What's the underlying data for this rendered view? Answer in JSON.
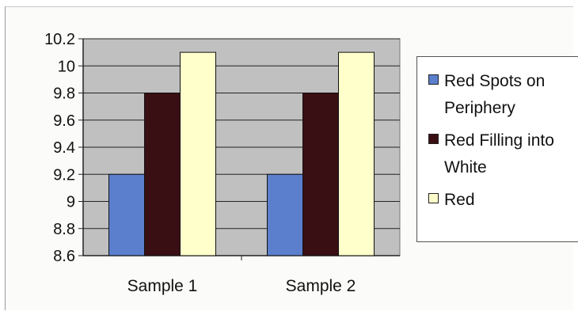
{
  "chart_data": {
    "type": "bar",
    "categories": [
      "Sample 1",
      "Sample 2"
    ],
    "series": [
      {
        "name": "Red Spots on Periphery",
        "values": [
          9.2,
          9.2
        ],
        "color": "#5b7fcc"
      },
      {
        "name": "Red Filling into White",
        "values": [
          9.8,
          9.8
        ],
        "color": "#3a0f14"
      },
      {
        "name": "Red",
        "values": [
          10.1,
          10.1
        ],
        "color": "#ffffcc"
      }
    ],
    "ylim": [
      8.6,
      10.2
    ],
    "yticks": [
      "8.6",
      "8.8",
      "9",
      "9.2",
      "9.4",
      "9.6",
      "9.8",
      "10",
      "10.2"
    ],
    "plot_background": "#c0c0c0",
    "grid": true,
    "legend_position": "right"
  },
  "legend": {
    "items": [
      {
        "lines": [
          "Red Spots on",
          "Periphery"
        ],
        "color": "#5b7fcc"
      },
      {
        "lines": [
          "Red Filling into",
          "White"
        ],
        "color": "#3a0f14"
      },
      {
        "lines": [
          "Red"
        ],
        "color": "#ffffcc"
      }
    ]
  }
}
